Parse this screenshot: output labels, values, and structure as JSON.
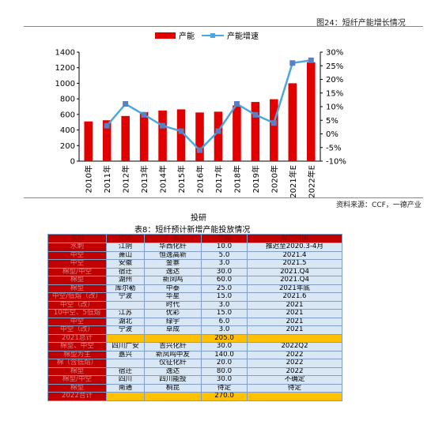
{
  "figure_title": "图24：短纤产能增长情况",
  "source": "资料来源：CCF，一德产业",
  "stamp": "投研",
  "chart_data": {
    "type": "bar",
    "title": "",
    "categories": [
      "2010年",
      "2011年",
      "2012年",
      "2013年",
      "2014年",
      "2015年",
      "2016年",
      "2017年",
      "2018年",
      "2019年",
      "2020年",
      "2021年E",
      "2022年E"
    ],
    "series": [
      {
        "name": "产能",
        "type": "bar",
        "axis": "left",
        "color": "#e00000",
        "values": [
          510,
          525,
          580,
          630,
          650,
          665,
          625,
          635,
          715,
          760,
          795,
          1000,
          1270
        ]
      },
      {
        "name": "产能增速",
        "type": "line",
        "axis": "right",
        "color": "#4aa8e0",
        "values": [
          null,
          3,
          11,
          7,
          3,
          1,
          -6,
          1,
          11,
          7,
          4,
          26,
          27
        ]
      }
    ],
    "ylim_left": [
      0,
      1400
    ],
    "yticks_left": [
      "0",
      "200",
      "400",
      "600",
      "800",
      "1000",
      "1200",
      "1400"
    ],
    "ylim_right": [
      -10,
      30
    ],
    "yticks_right": [
      "-10%",
      "-5%",
      "0%",
      "5%",
      "10%",
      "15%",
      "20%",
      "25%",
      "30%"
    ],
    "legend": "top"
  },
  "table": {
    "title": "表8：短纤预计新增产能投放情况",
    "headers": [
      "类别",
      "地区",
      "厂名",
      "产能",
      "投产时间"
    ],
    "rows": [
      [
        "水刺",
        "江阴",
        "华西化纤",
        "10.0",
        "推迟至2020.3-4月"
      ],
      [
        "中空",
        "萧山",
        "恒逸高新",
        "5.0",
        "2021.4"
      ],
      [
        "中空",
        "安徽",
        "金寨",
        "3.0",
        "2021.5"
      ],
      [
        "棉型/中空",
        "宿迁",
        "逸达",
        "30.0",
        "2021.Q4"
      ],
      [
        "棉型",
        "湖州",
        "新凤鸣",
        "60.0",
        "2021.Q4"
      ],
      [
        "棉型",
        "库尔勒",
        "中泰",
        "25.0",
        "2021年底"
      ],
      [
        "中空/低熔（改）",
        "宁波",
        "华星",
        "15.0",
        "2021.6"
      ],
      [
        "中空（改）",
        "",
        "时代",
        "3.0",
        "2021"
      ],
      [
        "10中空、5低熔",
        "江苏",
        "优彩",
        "15.0",
        "2021"
      ],
      [
        "中空",
        "湖北",
        "绿宇",
        "6.0",
        "2021"
      ],
      [
        "中空（改）",
        "宁波",
        "卓成",
        "3.0",
        "2021"
      ],
      [
        "2021总计",
        "",
        "",
        "205.0",
        ""
      ],
      [
        "棉型、中空",
        "四川广安",
        "吉兴化纤",
        "30.0",
        "2022Q2"
      ],
      [
        "棉型为主",
        "嘉兴",
        "新凤鸣中友",
        "140.0",
        "2022"
      ],
      [
        "棉（含低熔）",
        "",
        "仪征化纤",
        "20.0",
        "2022"
      ],
      [
        "棉型",
        "宿迁",
        "逸达",
        "80.0",
        "2022"
      ],
      [
        "棉型/中空",
        "四川",
        "四川能投",
        "30.0",
        "不确定"
      ],
      [
        "棉型",
        "南通",
        "桐昆",
        "待定",
        "待定"
      ],
      [
        "2022合计",
        "",
        "",
        "270.0",
        ""
      ]
    ]
  }
}
